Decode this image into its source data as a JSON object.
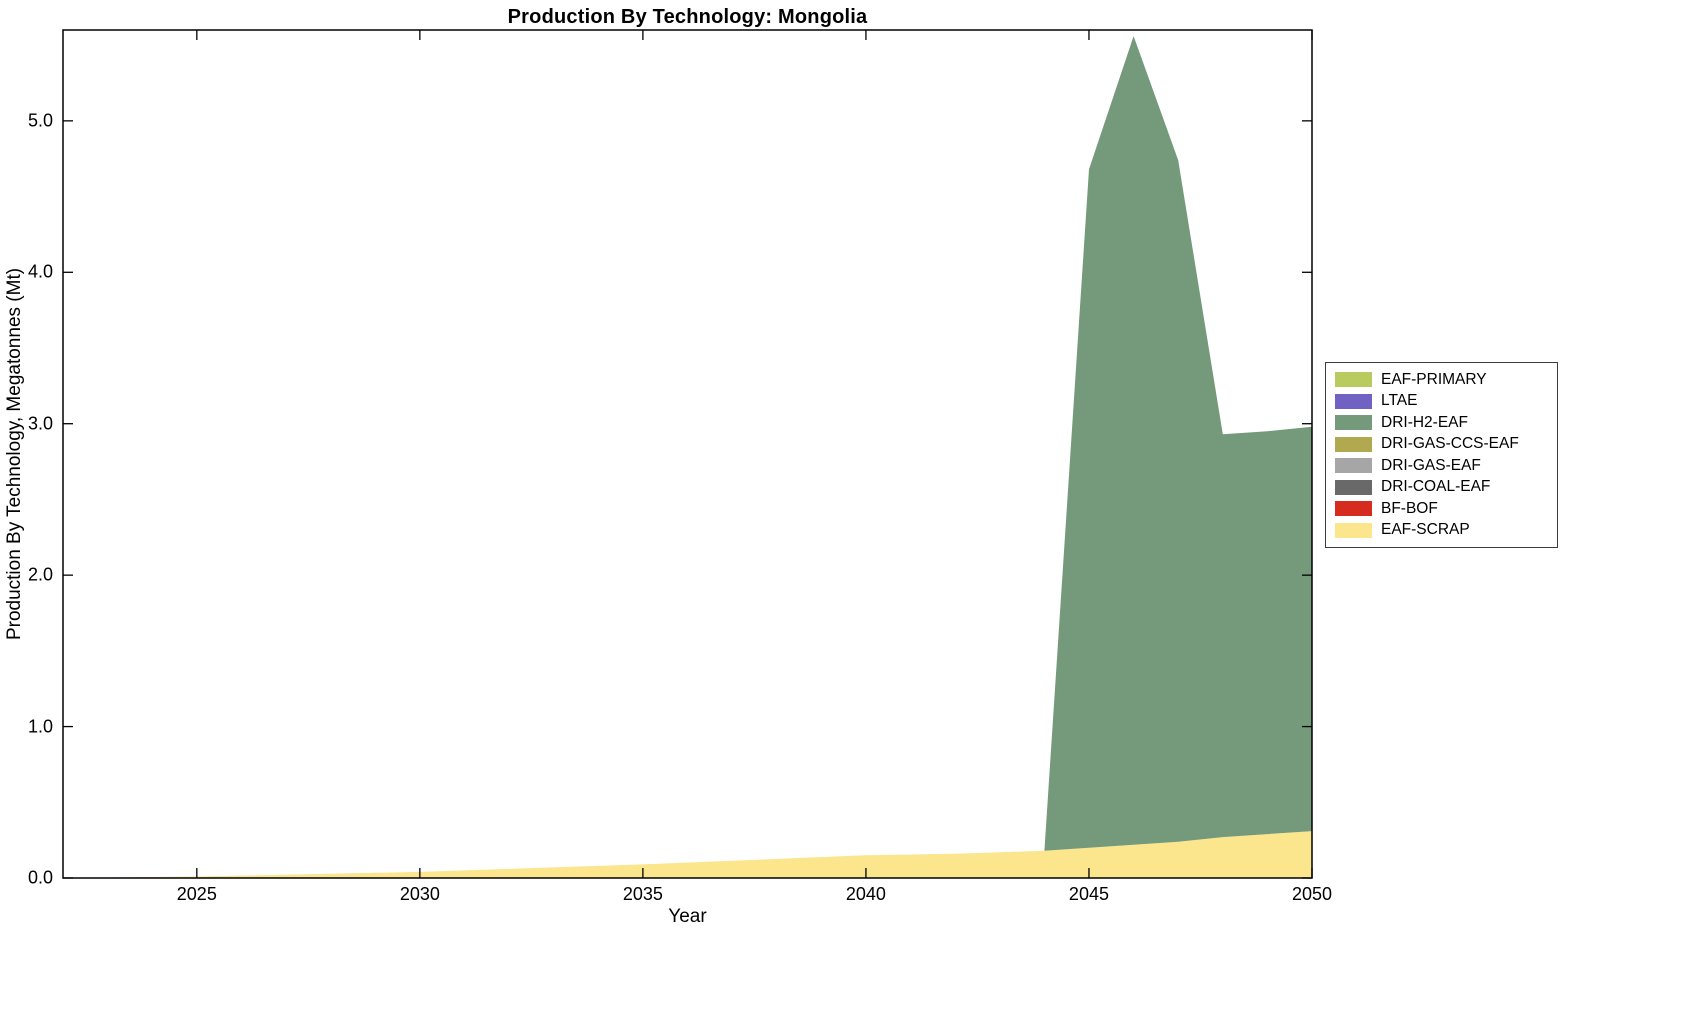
{
  "figure": {
    "background": "#ffffff"
  },
  "chart_data": {
    "type": "area",
    "stacked": true,
    "title": "Production By Technology: Mongolia",
    "xlabel": "Year",
    "ylabel": "Production By Technology, Megatonnes (Mt)",
    "xlim": [
      2022,
      2050
    ],
    "ylim": [
      0,
      5.6
    ],
    "xticks": [
      "2025",
      "2030",
      "2035",
      "2040",
      "2045",
      "2050"
    ],
    "yticks": [
      "0.0",
      "1.0",
      "2.0",
      "3.0",
      "4.0",
      "5.0"
    ],
    "grid": false,
    "legend_position": "right-outside",
    "legend_order": "reverse-of-series",
    "x": [
      2022,
      2025,
      2030,
      2035,
      2040,
      2042,
      2043,
      2044,
      2045,
      2046,
      2047,
      2048,
      2049,
      2050
    ],
    "series": [
      {
        "name": "EAF-SCRAP",
        "color": "#fbe58d",
        "values": [
          0,
          0.01,
          0.04,
          0.09,
          0.15,
          0.16,
          0.17,
          0.18,
          0.2,
          0.22,
          0.24,
          0.27,
          0.29,
          0.31
        ]
      },
      {
        "name": "BF-BOF",
        "color": "#d62b1f",
        "values": [
          0,
          0,
          0,
          0,
          0,
          0,
          0,
          0,
          0,
          0,
          0,
          0,
          0,
          0
        ]
      },
      {
        "name": "DRI-COAL-EAF",
        "color": "#696969",
        "values": [
          0,
          0,
          0,
          0,
          0,
          0,
          0,
          0,
          0,
          0,
          0,
          0,
          0,
          0
        ]
      },
      {
        "name": "DRI-GAS-EAF",
        "color": "#a6a6a6",
        "values": [
          0,
          0,
          0,
          0,
          0,
          0,
          0,
          0,
          0,
          0,
          0,
          0,
          0,
          0
        ]
      },
      {
        "name": "DRI-GAS-CCS-EAF",
        "color": "#b1a94f",
        "values": [
          0,
          0,
          0,
          0,
          0,
          0,
          0,
          0,
          0,
          0,
          0,
          0,
          0,
          0
        ]
      },
      {
        "name": "DRI-H2-EAF",
        "color": "#74997b",
        "values": [
          0,
          0,
          0,
          0,
          0,
          0,
          0,
          0,
          4.48,
          5.34,
          4.5,
          2.66,
          2.66,
          2.67
        ]
      },
      {
        "name": "LTAE",
        "color": "#6f62c3",
        "values": [
          0,
          0,
          0,
          0,
          0,
          0,
          0,
          0,
          0,
          0,
          0,
          0,
          0,
          0
        ]
      },
      {
        "name": "EAF-PRIMARY",
        "color": "#b9cb5f",
        "values": [
          0,
          0,
          0,
          0,
          0,
          0,
          0,
          0,
          0,
          0,
          0,
          0,
          0,
          0
        ]
      }
    ]
  }
}
